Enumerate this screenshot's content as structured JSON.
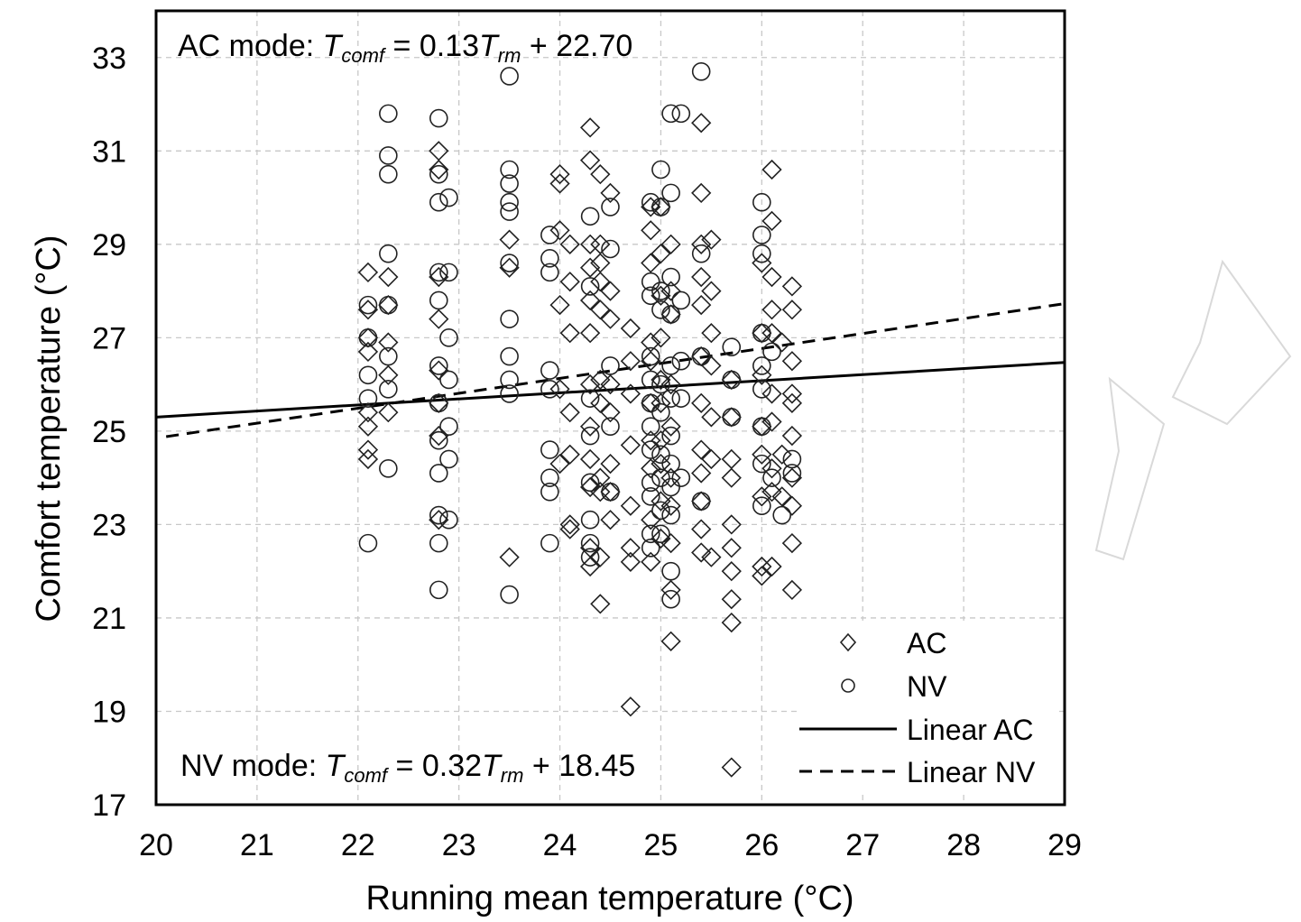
{
  "chart_data": {
    "type": "scatter",
    "xlabel": "Running mean temperature (°C)",
    "ylabel": "Comfort temperature (°C)",
    "xlim": [
      20,
      29
    ],
    "ylim": [
      17,
      34
    ],
    "xticks": [
      20,
      21,
      22,
      23,
      24,
      25,
      26,
      27,
      28,
      29
    ],
    "yticks": [
      17,
      19,
      21,
      23,
      25,
      27,
      29,
      31,
      33
    ],
    "grid": true,
    "legend_position": "bottom-right",
    "annotations": {
      "ac": {
        "prefix": "AC mode: ",
        "T": "T",
        "comf": "comf",
        "eq": " = 0.13",
        "T2": "T",
        "rm": "rm",
        "tail": " + 22.70"
      },
      "nv": {
        "prefix": "NV mode: ",
        "T": "T",
        "comf": "comf",
        "eq": " = 0.32",
        "T2": "T",
        "rm": "rm",
        "tail": " + 18.45"
      }
    },
    "legend": [
      "AC",
      "NV",
      "Linear AC",
      "Linear NV"
    ],
    "fits": [
      {
        "name": "Linear AC",
        "slope": 0.13,
        "intercept": 22.7,
        "x_range": [
          20,
          29
        ],
        "style": "solid"
      },
      {
        "name": "Linear NV",
        "slope": 0.32,
        "intercept": 18.45,
        "x_range": [
          20.1,
          29
        ],
        "style": "dashed"
      }
    ],
    "series": [
      {
        "name": "AC",
        "marker": "diamond",
        "points": [
          [
            22.1,
            28.4
          ],
          [
            22.1,
            27.6
          ],
          [
            22.1,
            27.0
          ],
          [
            22.1,
            26.7
          ],
          [
            22.1,
            25.4
          ],
          [
            22.1,
            25.1
          ],
          [
            22.1,
            24.6
          ],
          [
            22.1,
            24.4
          ],
          [
            22.3,
            28.3
          ],
          [
            22.3,
            27.7
          ],
          [
            22.3,
            26.9
          ],
          [
            22.3,
            26.2
          ],
          [
            22.3,
            25.4
          ],
          [
            22.8,
            31.0
          ],
          [
            22.8,
            30.6
          ],
          [
            22.8,
            28.3
          ],
          [
            22.8,
            27.4
          ],
          [
            22.8,
            26.3
          ],
          [
            22.8,
            25.6
          ],
          [
            22.8,
            24.9
          ],
          [
            22.8,
            23.1
          ],
          [
            23.5,
            29.1
          ],
          [
            23.5,
            28.5
          ],
          [
            23.5,
            22.3
          ],
          [
            24.0,
            30.5
          ],
          [
            24.0,
            30.3
          ],
          [
            24.0,
            29.3
          ],
          [
            24.0,
            27.7
          ],
          [
            24.0,
            25.9
          ],
          [
            24.0,
            24.3
          ],
          [
            24.1,
            29.0
          ],
          [
            24.1,
            28.2
          ],
          [
            24.1,
            27.1
          ],
          [
            24.1,
            25.4
          ],
          [
            24.1,
            24.5
          ],
          [
            24.1,
            23.0
          ],
          [
            24.1,
            22.9
          ],
          [
            24.3,
            31.5
          ],
          [
            24.3,
            30.8
          ],
          [
            24.3,
            29.0
          ],
          [
            24.3,
            28.5
          ],
          [
            24.3,
            27.8
          ],
          [
            24.3,
            27.1
          ],
          [
            24.3,
            26.0
          ],
          [
            24.3,
            25.1
          ],
          [
            24.3,
            24.4
          ],
          [
            24.3,
            23.8
          ],
          [
            24.3,
            22.5
          ],
          [
            24.3,
            22.1
          ],
          [
            24.4,
            30.5
          ],
          [
            24.4,
            29.0
          ],
          [
            24.4,
            28.6
          ],
          [
            24.4,
            28.2
          ],
          [
            24.4,
            27.6
          ],
          [
            24.4,
            26.1
          ],
          [
            24.4,
            25.6
          ],
          [
            24.4,
            24.0
          ],
          [
            24.4,
            23.7
          ],
          [
            24.4,
            22.3
          ],
          [
            24.4,
            21.3
          ],
          [
            24.5,
            30.1
          ],
          [
            24.5,
            28.0
          ],
          [
            24.5,
            27.4
          ],
          [
            24.5,
            26.0
          ],
          [
            24.5,
            25.4
          ],
          [
            24.5,
            24.3
          ],
          [
            24.5,
            23.7
          ],
          [
            24.5,
            23.1
          ],
          [
            24.7,
            27.2
          ],
          [
            24.7,
            26.5
          ],
          [
            24.7,
            25.8
          ],
          [
            24.7,
            24.7
          ],
          [
            24.7,
            23.4
          ],
          [
            24.7,
            22.5
          ],
          [
            24.7,
            22.2
          ],
          [
            24.7,
            19.1
          ],
          [
            24.9,
            29.8
          ],
          [
            24.9,
            29.3
          ],
          [
            24.9,
            28.6
          ],
          [
            24.9,
            26.9
          ],
          [
            24.9,
            26.5
          ],
          [
            24.9,
            25.6
          ],
          [
            24.9,
            24.8
          ],
          [
            24.9,
            24.2
          ],
          [
            24.9,
            23.1
          ],
          [
            24.9,
            22.2
          ],
          [
            25.0,
            29.8
          ],
          [
            25.0,
            28.8
          ],
          [
            25.0,
            27.9
          ],
          [
            25.0,
            27.0
          ],
          [
            25.0,
            26.1
          ],
          [
            25.0,
            25.6
          ],
          [
            25.0,
            24.8
          ],
          [
            25.0,
            24.3
          ],
          [
            25.0,
            23.5
          ],
          [
            25.0,
            22.7
          ],
          [
            25.1,
            29.0
          ],
          [
            25.1,
            28.0
          ],
          [
            25.1,
            27.5
          ],
          [
            25.1,
            26.0
          ],
          [
            25.1,
            25.1
          ],
          [
            25.1,
            24.0
          ],
          [
            25.1,
            23.4
          ],
          [
            25.1,
            22.6
          ],
          [
            25.1,
            21.6
          ],
          [
            25.1,
            20.5
          ],
          [
            25.4,
            31.6
          ],
          [
            25.4,
            30.1
          ],
          [
            25.4,
            29.0
          ],
          [
            25.4,
            28.3
          ],
          [
            25.4,
            27.7
          ],
          [
            25.4,
            26.6
          ],
          [
            25.4,
            25.6
          ],
          [
            25.4,
            24.6
          ],
          [
            25.4,
            24.1
          ],
          [
            25.4,
            23.5
          ],
          [
            25.4,
            22.9
          ],
          [
            25.4,
            22.4
          ],
          [
            25.5,
            29.1
          ],
          [
            25.5,
            28.0
          ],
          [
            25.5,
            27.1
          ],
          [
            25.5,
            26.4
          ],
          [
            25.5,
            25.3
          ],
          [
            25.5,
            24.4
          ],
          [
            25.5,
            22.3
          ],
          [
            25.7,
            26.1
          ],
          [
            25.7,
            25.3
          ],
          [
            25.7,
            24.4
          ],
          [
            25.7,
            24.0
          ],
          [
            25.7,
            23.0
          ],
          [
            25.7,
            22.5
          ],
          [
            25.7,
            22.0
          ],
          [
            25.7,
            21.4
          ],
          [
            25.7,
            20.9
          ],
          [
            25.7,
            17.8
          ],
          [
            26.0,
            28.6
          ],
          [
            26.0,
            27.1
          ],
          [
            26.0,
            26.2
          ],
          [
            26.0,
            25.1
          ],
          [
            26.0,
            24.5
          ],
          [
            26.0,
            23.6
          ],
          [
            26.0,
            22.1
          ],
          [
            26.0,
            21.9
          ],
          [
            26.1,
            30.6
          ],
          [
            26.1,
            29.5
          ],
          [
            26.1,
            28.3
          ],
          [
            26.1,
            27.6
          ],
          [
            26.1,
            27.1
          ],
          [
            26.1,
            25.8
          ],
          [
            26.1,
            25.2
          ],
          [
            26.1,
            24.2
          ],
          [
            26.1,
            23.7
          ],
          [
            26.1,
            22.1
          ],
          [
            26.2,
            26.9
          ],
          [
            26.2,
            24.5
          ],
          [
            26.2,
            23.6
          ],
          [
            26.3,
            28.1
          ],
          [
            26.3,
            27.6
          ],
          [
            26.3,
            26.5
          ],
          [
            26.3,
            25.8
          ],
          [
            26.3,
            25.6
          ],
          [
            26.3,
            24.9
          ],
          [
            26.3,
            24.0
          ],
          [
            26.3,
            23.4
          ],
          [
            26.3,
            22.6
          ],
          [
            26.3,
            21.6
          ]
        ]
      },
      {
        "name": "NV",
        "marker": "circle",
        "points": [
          [
            22.1,
            27.7
          ],
          [
            22.1,
            27.0
          ],
          [
            22.1,
            26.2
          ],
          [
            22.1,
            25.7
          ],
          [
            22.1,
            22.6
          ],
          [
            22.3,
            31.8
          ],
          [
            22.3,
            30.9
          ],
          [
            22.3,
            30.5
          ],
          [
            22.3,
            28.8
          ],
          [
            22.3,
            27.7
          ],
          [
            22.3,
            26.6
          ],
          [
            22.3,
            25.9
          ],
          [
            22.3,
            24.2
          ],
          [
            22.8,
            31.7
          ],
          [
            22.8,
            30.5
          ],
          [
            22.8,
            29.9
          ],
          [
            22.8,
            28.4
          ],
          [
            22.8,
            27.8
          ],
          [
            22.8,
            26.4
          ],
          [
            22.8,
            25.6
          ],
          [
            22.8,
            24.8
          ],
          [
            22.8,
            24.1
          ],
          [
            22.8,
            23.2
          ],
          [
            22.8,
            22.6
          ],
          [
            22.8,
            21.6
          ],
          [
            22.9,
            30.0
          ],
          [
            22.9,
            28.4
          ],
          [
            22.9,
            27.0
          ],
          [
            22.9,
            26.1
          ],
          [
            22.9,
            25.1
          ],
          [
            22.9,
            24.4
          ],
          [
            22.9,
            23.1
          ],
          [
            23.5,
            32.6
          ],
          [
            23.5,
            30.6
          ],
          [
            23.5,
            30.3
          ],
          [
            23.5,
            29.9
          ],
          [
            23.5,
            29.7
          ],
          [
            23.5,
            28.6
          ],
          [
            23.5,
            27.4
          ],
          [
            23.5,
            26.6
          ],
          [
            23.5,
            26.1
          ],
          [
            23.5,
            25.8
          ],
          [
            23.5,
            21.5
          ],
          [
            23.9,
            29.2
          ],
          [
            23.9,
            28.7
          ],
          [
            23.9,
            28.4
          ],
          [
            23.9,
            26.3
          ],
          [
            23.9,
            25.9
          ],
          [
            23.9,
            24.6
          ],
          [
            23.9,
            24.0
          ],
          [
            23.9,
            23.7
          ],
          [
            23.9,
            22.6
          ],
          [
            24.3,
            29.6
          ],
          [
            24.3,
            28.1
          ],
          [
            24.3,
            25.7
          ],
          [
            24.3,
            24.9
          ],
          [
            24.3,
            23.9
          ],
          [
            24.3,
            23.1
          ],
          [
            24.3,
            22.6
          ],
          [
            24.3,
            22.3
          ],
          [
            24.5,
            29.8
          ],
          [
            24.5,
            28.9
          ],
          [
            24.5,
            26.4
          ],
          [
            24.5,
            25.1
          ],
          [
            24.5,
            23.7
          ],
          [
            24.9,
            29.9
          ],
          [
            24.9,
            28.2
          ],
          [
            24.9,
            27.9
          ],
          [
            24.9,
            26.6
          ],
          [
            24.9,
            26.1
          ],
          [
            24.9,
            25.6
          ],
          [
            24.9,
            25.1
          ],
          [
            24.9,
            24.6
          ],
          [
            24.9,
            23.9
          ],
          [
            24.9,
            23.6
          ],
          [
            24.9,
            22.8
          ],
          [
            24.9,
            22.5
          ],
          [
            25.0,
            30.6
          ],
          [
            25.0,
            29.8
          ],
          [
            25.0,
            28.0
          ],
          [
            25.0,
            27.6
          ],
          [
            25.0,
            26.0
          ],
          [
            25.0,
            25.4
          ],
          [
            25.0,
            24.5
          ],
          [
            25.0,
            24.0
          ],
          [
            25.0,
            23.3
          ],
          [
            25.0,
            22.8
          ],
          [
            25.1,
            31.8
          ],
          [
            25.1,
            30.1
          ],
          [
            25.1,
            28.3
          ],
          [
            25.1,
            27.5
          ],
          [
            25.1,
            26.4
          ],
          [
            25.1,
            25.7
          ],
          [
            25.1,
            24.9
          ],
          [
            25.1,
            24.3
          ],
          [
            25.1,
            23.8
          ],
          [
            25.1,
            23.2
          ],
          [
            25.1,
            22.0
          ],
          [
            25.1,
            21.4
          ],
          [
            25.2,
            31.8
          ],
          [
            25.2,
            27.8
          ],
          [
            25.2,
            26.5
          ],
          [
            25.2,
            25.7
          ],
          [
            25.2,
            24.0
          ],
          [
            25.4,
            32.7
          ],
          [
            25.4,
            28.8
          ],
          [
            25.4,
            26.6
          ],
          [
            25.4,
            23.5
          ],
          [
            25.7,
            26.8
          ],
          [
            25.7,
            26.1
          ],
          [
            25.7,
            25.3
          ],
          [
            26.0,
            29.9
          ],
          [
            26.0,
            29.2
          ],
          [
            26.0,
            28.8
          ],
          [
            26.0,
            27.1
          ],
          [
            26.0,
            26.4
          ],
          [
            26.0,
            25.9
          ],
          [
            26.0,
            25.1
          ],
          [
            26.0,
            24.3
          ],
          [
            26.0,
            23.4
          ],
          [
            26.1,
            26.7
          ],
          [
            26.1,
            24.0
          ],
          [
            26.2,
            23.2
          ],
          [
            26.3,
            24.4
          ],
          [
            26.3,
            24.1
          ]
        ]
      }
    ]
  }
}
